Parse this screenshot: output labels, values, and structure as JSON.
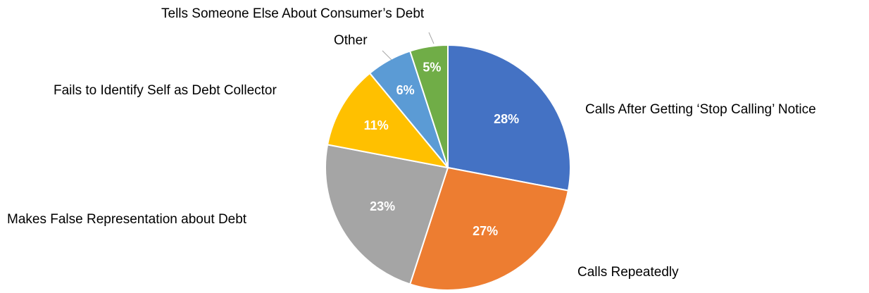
{
  "chart_data": {
    "type": "pie",
    "title": "",
    "categories": [
      "Calls After Getting ‘Stop Calling’ Notice",
      "Calls Repeatedly",
      "Makes False Representation about Debt",
      "Fails to Identify Self as Debt Collector",
      "Other",
      "Tells Someone Else About Consumer’s Debt"
    ],
    "values": [
      28,
      27,
      23,
      11,
      6,
      5
    ],
    "value_labels": [
      "28%",
      "27%",
      "23%",
      "11%",
      "6%",
      "5%"
    ],
    "colors": [
      "#4472C4",
      "#ED7D31",
      "#A5A5A5",
      "#FFC000",
      "#5B9BD5",
      "#70AD47"
    ],
    "start": "top",
    "direction": "clockwise",
    "legend": "none"
  }
}
